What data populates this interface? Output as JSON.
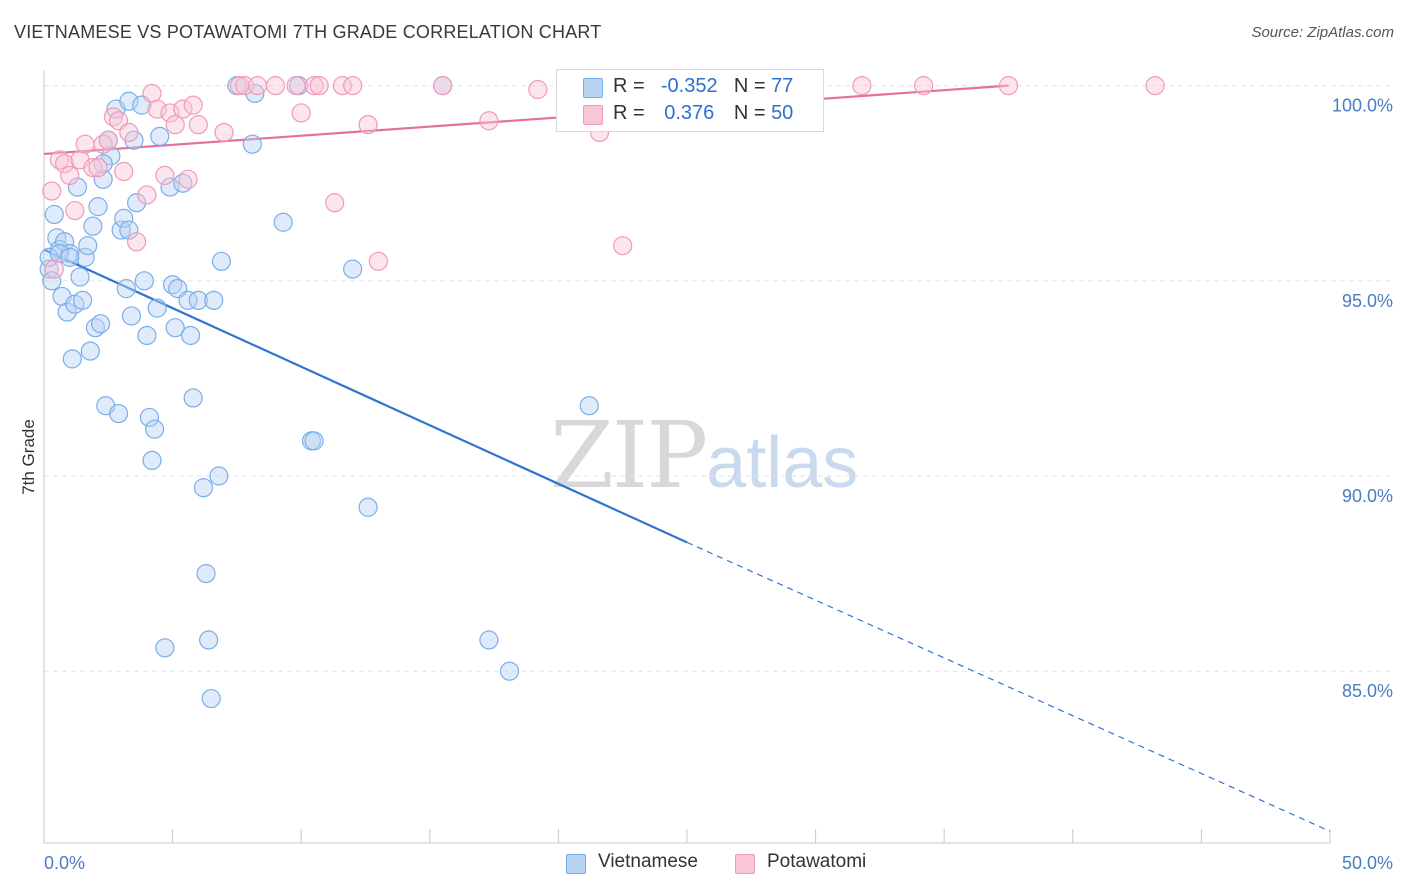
{
  "title": "VIETNAMESE VS POTAWATOMI 7TH GRADE CORRELATION CHART",
  "source": "Source: ZipAtlas.com",
  "watermark": {
    "zip": "ZIP",
    "atlas": "atlas"
  },
  "legend": {
    "r_label": "R =",
    "n_label": "N =",
    "rows": [
      {
        "name": "Vietnamese",
        "r": "-0.352",
        "n": "77",
        "color": "#7aaee8",
        "fill": "#b9d3f3"
      },
      {
        "name": "Potawatomi",
        "r": "0.376",
        "n": "50",
        "color": "#f09ab8",
        "fill": "#f9c6d7"
      }
    ]
  },
  "chart_data": {
    "type": "scatter",
    "title": "VIETNAMESE VS POTAWATOMI 7TH GRADE CORRELATION CHART",
    "xlabel": "",
    "ylabel": "7th Grade",
    "xlim": [
      0,
      50
    ],
    "ylim": [
      80.6,
      100.4
    ],
    "x_tick_labels": [
      "0.0%",
      "50.0%"
    ],
    "y_ticks": [
      85,
      90,
      95,
      100
    ],
    "y_tick_labels": [
      "85.0%",
      "90.0%",
      "95.0%",
      "100.0%"
    ],
    "grid": true,
    "series": [
      {
        "name": "Vietnamese",
        "color": "#7aaee8",
        "line_color": "#2f74d0",
        "trend": {
          "x0": 0,
          "y0": 95.8,
          "x1": 25,
          "y1": 88.3,
          "dash_to_x": 50,
          "dash_to_y": 80.9
        },
        "points": [
          [
            0.2,
            95.3
          ],
          [
            0.3,
            95.0
          ],
          [
            0.4,
            96.7
          ],
          [
            0.5,
            96.1
          ],
          [
            0.6,
            95.8
          ],
          [
            0.7,
            94.6
          ],
          [
            0.8,
            96.0
          ],
          [
            0.9,
            94.2
          ],
          [
            1.0,
            95.7
          ],
          [
            1.1,
            93.0
          ],
          [
            1.2,
            94.4
          ],
          [
            1.3,
            97.4
          ],
          [
            1.4,
            95.1
          ],
          [
            1.5,
            94.5
          ],
          [
            1.6,
            95.6
          ],
          [
            1.7,
            95.9
          ],
          [
            1.8,
            93.2
          ],
          [
            1.9,
            96.4
          ],
          [
            2.0,
            93.8
          ],
          [
            2.1,
            96.9
          ],
          [
            2.2,
            93.9
          ],
          [
            2.3,
            97.6
          ],
          [
            2.4,
            91.8
          ],
          [
            2.5,
            98.6
          ],
          [
            2.6,
            98.2
          ],
          [
            2.8,
            99.4
          ],
          [
            2.9,
            91.6
          ],
          [
            3.0,
            96.3
          ],
          [
            3.1,
            96.6
          ],
          [
            3.2,
            94.8
          ],
          [
            3.3,
            99.6
          ],
          [
            3.4,
            94.1
          ],
          [
            3.5,
            98.6
          ],
          [
            3.6,
            97.0
          ],
          [
            3.8,
            99.5
          ],
          [
            3.9,
            95.0
          ],
          [
            4.0,
            93.6
          ],
          [
            4.1,
            91.5
          ],
          [
            4.2,
            90.4
          ],
          [
            4.3,
            91.2
          ],
          [
            4.4,
            94.3
          ],
          [
            4.5,
            98.7
          ],
          [
            4.7,
            85.6
          ],
          [
            4.9,
            97.4
          ],
          [
            5.0,
            94.9
          ],
          [
            5.1,
            93.8
          ],
          [
            5.2,
            94.8
          ],
          [
            5.4,
            97.5
          ],
          [
            5.6,
            94.5
          ],
          [
            5.7,
            93.6
          ],
          [
            5.8,
            92.0
          ],
          [
            6.0,
            94.5
          ],
          [
            6.2,
            89.7
          ],
          [
            6.3,
            87.5
          ],
          [
            6.4,
            85.8
          ],
          [
            6.5,
            84.3
          ],
          [
            6.8,
            90.0
          ],
          [
            6.9,
            95.5
          ],
          [
            7.5,
            100.0
          ],
          [
            8.1,
            98.5
          ],
          [
            8.2,
            99.8
          ],
          [
            9.3,
            96.5
          ],
          [
            9.9,
            100.0
          ],
          [
            10.4,
            90.9
          ],
          [
            10.5,
            90.9
          ],
          [
            12.0,
            95.3
          ],
          [
            12.6,
            89.2
          ],
          [
            15.5,
            100.0
          ],
          [
            17.3,
            85.8
          ],
          [
            18.1,
            85.0
          ],
          [
            21.2,
            91.8
          ],
          [
            0.2,
            95.6
          ],
          [
            0.6,
            95.7
          ],
          [
            1.0,
            95.6
          ],
          [
            2.3,
            98.0
          ],
          [
            3.3,
            96.3
          ],
          [
            6.6,
            94.5
          ]
        ]
      },
      {
        "name": "Potawatomi",
        "color": "#f09ab8",
        "line_color": "#e4709a",
        "trend": {
          "x0": 0,
          "y0": 98.25,
          "x1": 37.5,
          "y1": 100.0
        },
        "points": [
          [
            0.3,
            97.3
          ],
          [
            0.4,
            95.3
          ],
          [
            0.6,
            98.1
          ],
          [
            0.8,
            98.0
          ],
          [
            1.0,
            97.7
          ],
          [
            1.2,
            96.8
          ],
          [
            1.4,
            98.1
          ],
          [
            1.6,
            98.5
          ],
          [
            1.9,
            97.9
          ],
          [
            2.1,
            97.9
          ],
          [
            2.3,
            98.5
          ],
          [
            2.5,
            98.6
          ],
          [
            2.7,
            99.2
          ],
          [
            2.9,
            99.1
          ],
          [
            3.1,
            97.8
          ],
          [
            3.3,
            98.8
          ],
          [
            3.6,
            96.0
          ],
          [
            4.0,
            97.2
          ],
          [
            4.2,
            99.8
          ],
          [
            4.4,
            99.4
          ],
          [
            4.7,
            97.7
          ],
          [
            4.9,
            99.3
          ],
          [
            5.1,
            99.0
          ],
          [
            5.4,
            99.4
          ],
          [
            5.6,
            97.6
          ],
          [
            5.8,
            99.5
          ],
          [
            6.0,
            99.0
          ],
          [
            7.0,
            98.8
          ],
          [
            7.6,
            100.0
          ],
          [
            7.8,
            100.0
          ],
          [
            8.3,
            100.0
          ],
          [
            9.0,
            100.0
          ],
          [
            9.8,
            100.0
          ],
          [
            10.0,
            99.3
          ],
          [
            10.5,
            100.0
          ],
          [
            10.7,
            100.0
          ],
          [
            11.3,
            97.0
          ],
          [
            11.6,
            100.0
          ],
          [
            12.0,
            100.0
          ],
          [
            12.6,
            99.0
          ],
          [
            13.0,
            95.5
          ],
          [
            15.5,
            100.0
          ],
          [
            17.3,
            99.1
          ],
          [
            19.2,
            99.9
          ],
          [
            21.6,
            98.8
          ],
          [
            22.5,
            95.9
          ],
          [
            31.8,
            100.0
          ],
          [
            34.2,
            100.0
          ],
          [
            37.5,
            100.0
          ],
          [
            43.2,
            100.0
          ]
        ]
      }
    ]
  }
}
